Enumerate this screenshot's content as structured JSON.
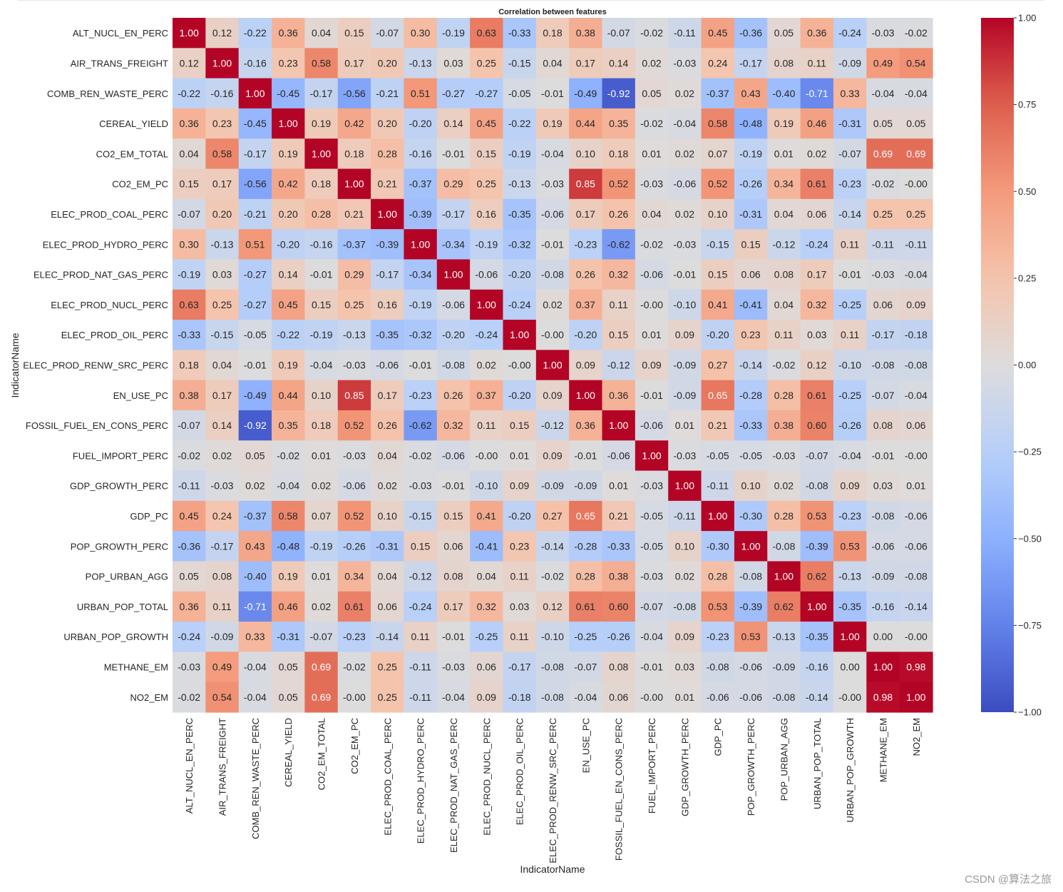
{
  "watermark": "CSDN @算法之旅",
  "chart_data": {
    "type": "heatmap",
    "title": "Correlation between features",
    "xlabel": "IndicatorName",
    "ylabel": "IndicatorName",
    "colormap": "coolwarm",
    "vmin": -1.0,
    "vmax": 1.0,
    "colorbar_ticks": [
      "1.00",
      "0.75",
      "0.50",
      "0.25",
      "0.00",
      "−0.25",
      "−0.50",
      "−0.75",
      "−1.00"
    ],
    "colorbar_tick_values": [
      1.0,
      0.75,
      0.5,
      0.25,
      0.0,
      -0.25,
      -0.5,
      -0.75,
      -1.0
    ],
    "labels": [
      "ALT_NUCL_EN_PERC",
      "AIR_TRANS_FREIGHT",
      "COMB_REN_WASTE_PERC",
      "CEREAL_YIELD",
      "CO2_EM_TOTAL",
      "CO2_EM_PC",
      "ELEC_PROD_COAL_PERC",
      "ELEC_PROD_HYDRO_PERC",
      "ELEC_PROD_NAT_GAS_PERC",
      "ELEC_PROD_NUCL_PERC",
      "ELEC_PROD_OIL_PERC",
      "ELEC_PROD_RENW_SRC_PERC",
      "EN_USE_PC",
      "FOSSIL_FUEL_EN_CONS_PERC",
      "FUEL_IMPORT_PERC",
      "GDP_GROWTH_PERC",
      "GDP_PC",
      "POP_GROWTH_PERC",
      "POP_URBAN_AGG",
      "URBAN_POP_TOTAL",
      "URBAN_POP_GROWTH",
      "METHANE_EM",
      "NO2_EM"
    ],
    "matrix": [
      [
        1.0,
        0.12,
        -0.22,
        0.36,
        0.04,
        0.15,
        -0.07,
        0.3,
        -0.19,
        0.63,
        -0.33,
        0.18,
        0.38,
        -0.07,
        -0.02,
        -0.11,
        0.45,
        -0.36,
        0.05,
        0.36,
        -0.24,
        -0.03,
        -0.02
      ],
      [
        0.12,
        1.0,
        -0.16,
        0.23,
        0.58,
        0.17,
        0.2,
        -0.13,
        0.03,
        0.25,
        -0.15,
        0.04,
        0.17,
        0.14,
        0.02,
        -0.03,
        0.24,
        -0.17,
        0.08,
        0.11,
        -0.09,
        0.49,
        0.54
      ],
      [
        -0.22,
        -0.16,
        1.0,
        -0.45,
        -0.17,
        -0.56,
        -0.21,
        0.51,
        -0.27,
        -0.27,
        -0.05,
        -0.01,
        -0.49,
        -0.92,
        0.05,
        0.02,
        -0.37,
        0.43,
        -0.4,
        -0.71,
        0.33,
        -0.04,
        -0.04
      ],
      [
        0.36,
        0.23,
        -0.45,
        1.0,
        0.19,
        0.42,
        0.2,
        -0.2,
        0.14,
        0.45,
        -0.22,
        0.19,
        0.44,
        0.35,
        -0.02,
        -0.04,
        0.58,
        -0.48,
        0.19,
        0.46,
        -0.31,
        0.05,
        0.05
      ],
      [
        0.04,
        0.58,
        -0.17,
        0.19,
        1.0,
        0.18,
        0.28,
        -0.16,
        -0.01,
        0.15,
        -0.19,
        -0.04,
        0.1,
        0.18,
        0.01,
        0.02,
        0.07,
        -0.19,
        0.01,
        0.02,
        -0.07,
        0.69,
        0.69
      ],
      [
        0.15,
        0.17,
        -0.56,
        0.42,
        0.18,
        1.0,
        0.21,
        -0.37,
        0.29,
        0.25,
        -0.13,
        -0.03,
        0.85,
        0.52,
        -0.03,
        -0.06,
        0.52,
        -0.26,
        0.34,
        0.61,
        -0.23,
        -0.02,
        -0.0
      ],
      [
        -0.07,
        0.2,
        -0.21,
        0.2,
        0.28,
        0.21,
        1.0,
        -0.39,
        -0.17,
        0.16,
        -0.35,
        -0.06,
        0.17,
        0.26,
        0.04,
        0.02,
        0.1,
        -0.31,
        0.04,
        0.06,
        -0.14,
        0.25,
        0.25
      ],
      [
        0.3,
        -0.13,
        0.51,
        -0.2,
        -0.16,
        -0.37,
        -0.39,
        1.0,
        -0.34,
        -0.19,
        -0.32,
        -0.01,
        -0.23,
        -0.62,
        -0.02,
        -0.03,
        -0.15,
        0.15,
        -0.12,
        -0.24,
        0.11,
        -0.11,
        -0.11
      ],
      [
        -0.19,
        0.03,
        -0.27,
        0.14,
        -0.01,
        0.29,
        -0.17,
        -0.34,
        1.0,
        -0.06,
        -0.2,
        -0.08,
        0.26,
        0.32,
        -0.06,
        -0.01,
        0.15,
        0.06,
        0.08,
        0.17,
        -0.01,
        -0.03,
        -0.04
      ],
      [
        0.63,
        0.25,
        -0.27,
        0.45,
        0.15,
        0.25,
        0.16,
        -0.19,
        -0.06,
        1.0,
        -0.24,
        0.02,
        0.37,
        0.11,
        -0.0,
        -0.1,
        0.41,
        -0.41,
        0.04,
        0.32,
        -0.25,
        0.06,
        0.09
      ],
      [
        -0.33,
        -0.15,
        -0.05,
        -0.22,
        -0.19,
        -0.13,
        -0.35,
        -0.32,
        -0.2,
        -0.24,
        1.0,
        -0.0,
        -0.2,
        0.15,
        0.01,
        0.09,
        -0.2,
        0.23,
        0.11,
        0.03,
        0.11,
        -0.17,
        -0.18
      ],
      [
        0.18,
        0.04,
        -0.01,
        0.19,
        -0.04,
        -0.03,
        -0.06,
        -0.01,
        -0.08,
        0.02,
        -0.0,
        1.0,
        0.09,
        -0.12,
        0.09,
        -0.09,
        0.27,
        -0.14,
        -0.02,
        0.12,
        -0.1,
        -0.08,
        -0.08
      ],
      [
        0.38,
        0.17,
        -0.49,
        0.44,
        0.1,
        0.85,
        0.17,
        -0.23,
        0.26,
        0.37,
        -0.2,
        0.09,
        1.0,
        0.36,
        -0.01,
        -0.09,
        0.65,
        -0.28,
        0.28,
        0.61,
        -0.25,
        -0.07,
        -0.04
      ],
      [
        -0.07,
        0.14,
        -0.92,
        0.35,
        0.18,
        0.52,
        0.26,
        -0.62,
        0.32,
        0.11,
        0.15,
        -0.12,
        0.36,
        1.0,
        -0.06,
        0.01,
        0.21,
        -0.33,
        0.38,
        0.6,
        -0.26,
        0.08,
        0.06
      ],
      [
        -0.02,
        0.02,
        0.05,
        -0.02,
        0.01,
        -0.03,
        0.04,
        -0.02,
        -0.06,
        -0.0,
        0.01,
        0.09,
        -0.01,
        -0.06,
        1.0,
        -0.03,
        -0.05,
        -0.05,
        -0.03,
        -0.07,
        -0.04,
        -0.01,
        -0.0
      ],
      [
        -0.11,
        -0.03,
        0.02,
        -0.04,
        0.02,
        -0.06,
        0.02,
        -0.03,
        -0.01,
        -0.1,
        0.09,
        -0.09,
        -0.09,
        0.01,
        -0.03,
        1.0,
        -0.11,
        0.1,
        0.02,
        -0.08,
        0.09,
        0.03,
        0.01
      ],
      [
        0.45,
        0.24,
        -0.37,
        0.58,
        0.07,
        0.52,
        0.1,
        -0.15,
        0.15,
        0.41,
        -0.2,
        0.27,
        0.65,
        0.21,
        -0.05,
        -0.11,
        1.0,
        -0.3,
        0.28,
        0.53,
        -0.23,
        -0.08,
        -0.06
      ],
      [
        -0.36,
        -0.17,
        0.43,
        -0.48,
        -0.19,
        -0.26,
        -0.31,
        0.15,
        0.06,
        -0.41,
        0.23,
        -0.14,
        -0.28,
        -0.33,
        -0.05,
        0.1,
        -0.3,
        1.0,
        -0.08,
        -0.39,
        0.53,
        -0.06,
        -0.06
      ],
      [
        0.05,
        0.08,
        -0.4,
        0.19,
        0.01,
        0.34,
        0.04,
        -0.12,
        0.08,
        0.04,
        0.11,
        -0.02,
        0.28,
        0.38,
        -0.03,
        0.02,
        0.28,
        -0.08,
        1.0,
        0.62,
        -0.13,
        -0.09,
        -0.08
      ],
      [
        0.36,
        0.11,
        -0.71,
        0.46,
        0.02,
        0.61,
        0.06,
        -0.24,
        0.17,
        0.32,
        0.03,
        0.12,
        0.61,
        0.6,
        -0.07,
        -0.08,
        0.53,
        -0.39,
        0.62,
        1.0,
        -0.35,
        -0.16,
        -0.14
      ],
      [
        -0.24,
        -0.09,
        0.33,
        -0.31,
        -0.07,
        -0.23,
        -0.14,
        0.11,
        -0.01,
        -0.25,
        0.11,
        -0.1,
        -0.25,
        -0.26,
        -0.04,
        0.09,
        -0.23,
        0.53,
        -0.13,
        -0.35,
        1.0,
        0.0,
        -0.0
      ],
      [
        -0.03,
        0.49,
        -0.04,
        0.05,
        0.69,
        -0.02,
        0.25,
        -0.11,
        -0.03,
        0.06,
        -0.17,
        -0.08,
        -0.07,
        0.08,
        -0.01,
        0.03,
        -0.08,
        -0.06,
        -0.09,
        -0.16,
        0.0,
        1.0,
        0.98
      ],
      [
        -0.02,
        0.54,
        -0.04,
        0.05,
        0.69,
        -0.0,
        0.25,
        -0.11,
        -0.04,
        0.09,
        -0.18,
        -0.08,
        -0.04,
        0.06,
        -0.0,
        0.01,
        -0.06,
        -0.06,
        -0.08,
        -0.14,
        -0.0,
        0.98,
        1.0
      ]
    ]
  }
}
